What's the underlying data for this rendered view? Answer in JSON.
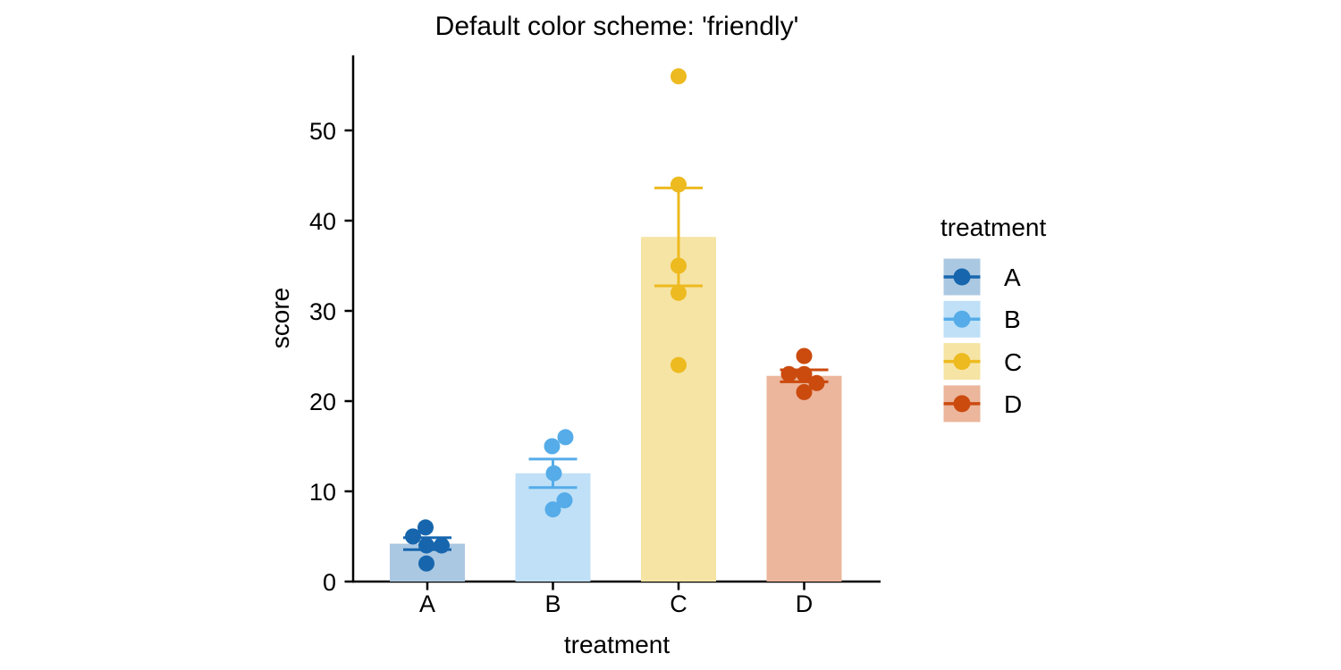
{
  "chart_data": {
    "type": "bar",
    "title": "Default color scheme: 'friendly'",
    "xlabel": "treatment",
    "ylabel": "score",
    "categories": [
      "A",
      "B",
      "C",
      "D"
    ],
    "yticks": [
      0,
      10,
      20,
      30,
      40,
      50
    ],
    "ylim": [
      0,
      58.3
    ],
    "grid": false,
    "axis_color": "#000000",
    "legend": {
      "title": "treatment",
      "position": "right",
      "entries": [
        "A",
        "B",
        "C",
        "D"
      ]
    },
    "series": [
      {
        "name": "A",
        "mean": 4.2,
        "se": 0.66,
        "point_color": "#1766AD",
        "bar_color": "#ABC8E2",
        "points": [
          {
            "v": 6,
            "dx": -2
          },
          {
            "v": 5,
            "dx": -16
          },
          {
            "v": 4,
            "dx": -1
          },
          {
            "v": 4,
            "dx": 16
          },
          {
            "v": 2,
            "dx": -1
          }
        ]
      },
      {
        "name": "B",
        "mean": 12.0,
        "se": 1.58,
        "point_color": "#55ACE8",
        "bar_color": "#BFE0F7",
        "points": [
          {
            "v": 16,
            "dx": 14
          },
          {
            "v": 15,
            "dx": -1
          },
          {
            "v": 12,
            "dx": 1
          },
          {
            "v": 9,
            "dx": 13
          },
          {
            "v": 8,
            "dx": 0
          }
        ]
      },
      {
        "name": "C",
        "mean": 38.2,
        "se": 5.43,
        "point_color": "#EDBA1F",
        "bar_color": "#F6E4A5",
        "points": [
          {
            "v": 56,
            "dx": 0
          },
          {
            "v": 44,
            "dx": 0
          },
          {
            "v": 35,
            "dx": 0
          },
          {
            "v": 32,
            "dx": 0
          },
          {
            "v": 24,
            "dx": 0
          }
        ]
      },
      {
        "name": "D",
        "mean": 22.8,
        "se": 0.66,
        "point_color": "#CB4A0E",
        "bar_color": "#EBB69C",
        "points": [
          {
            "v": 25,
            "dx": 0
          },
          {
            "v": 23,
            "dx": -17
          },
          {
            "v": 23,
            "dx": 0
          },
          {
            "v": 22,
            "dx": 14
          },
          {
            "v": 21,
            "dx": 0
          }
        ]
      }
    ]
  }
}
